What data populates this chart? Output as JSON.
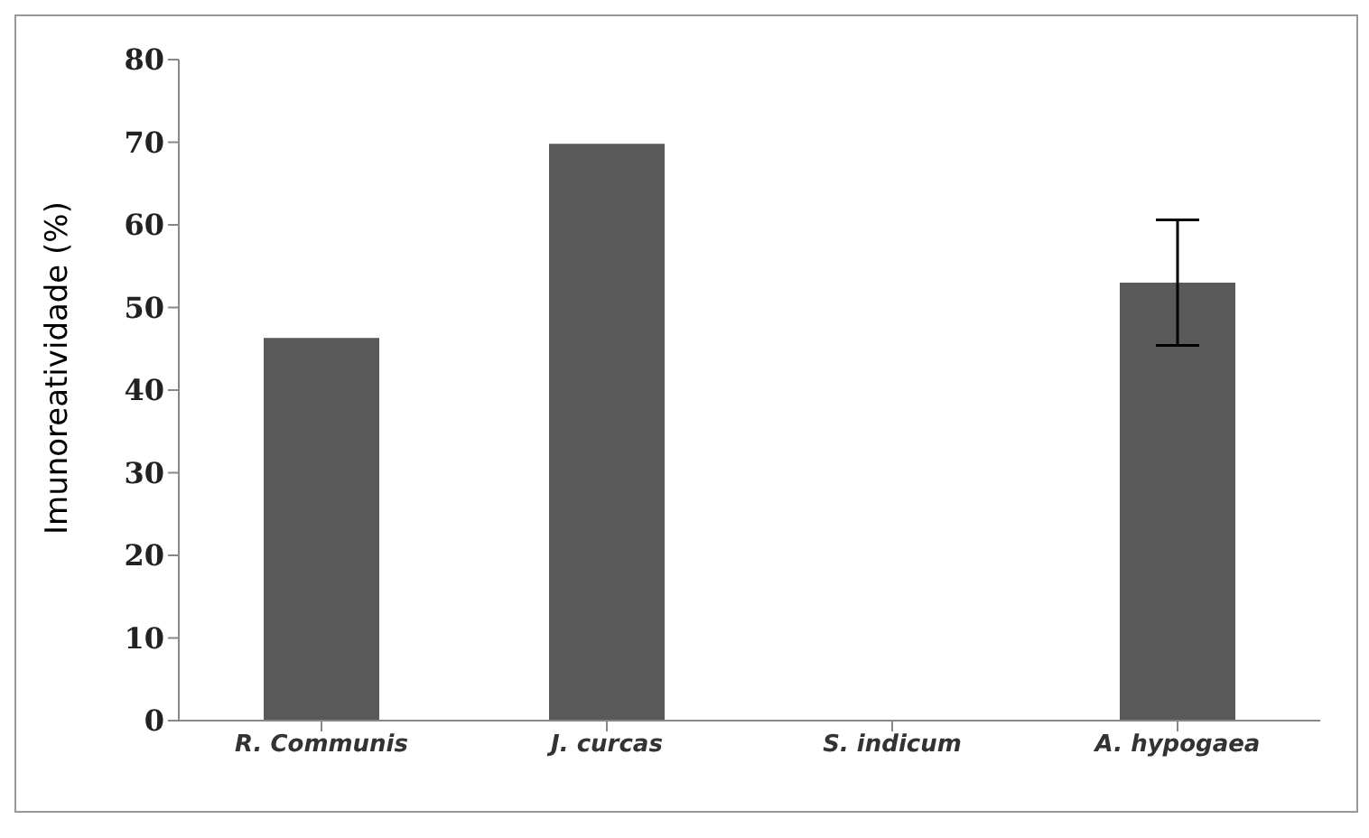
{
  "chart_data": {
    "type": "bar",
    "ylabel": "Imunoreatividade (%)",
    "categories": [
      "R. Communis",
      "J. curcas",
      "S. indicum",
      "A. hypogaea"
    ],
    "values": [
      46.3,
      69.8,
      0,
      53
    ],
    "errors": [
      0,
      0,
      null,
      7.6
    ],
    "color": "#595959",
    "ylim": [
      0,
      80
    ],
    "yticks": [
      0,
      10,
      20,
      30,
      40,
      50,
      60,
      70,
      80
    ],
    "grid": false
  }
}
